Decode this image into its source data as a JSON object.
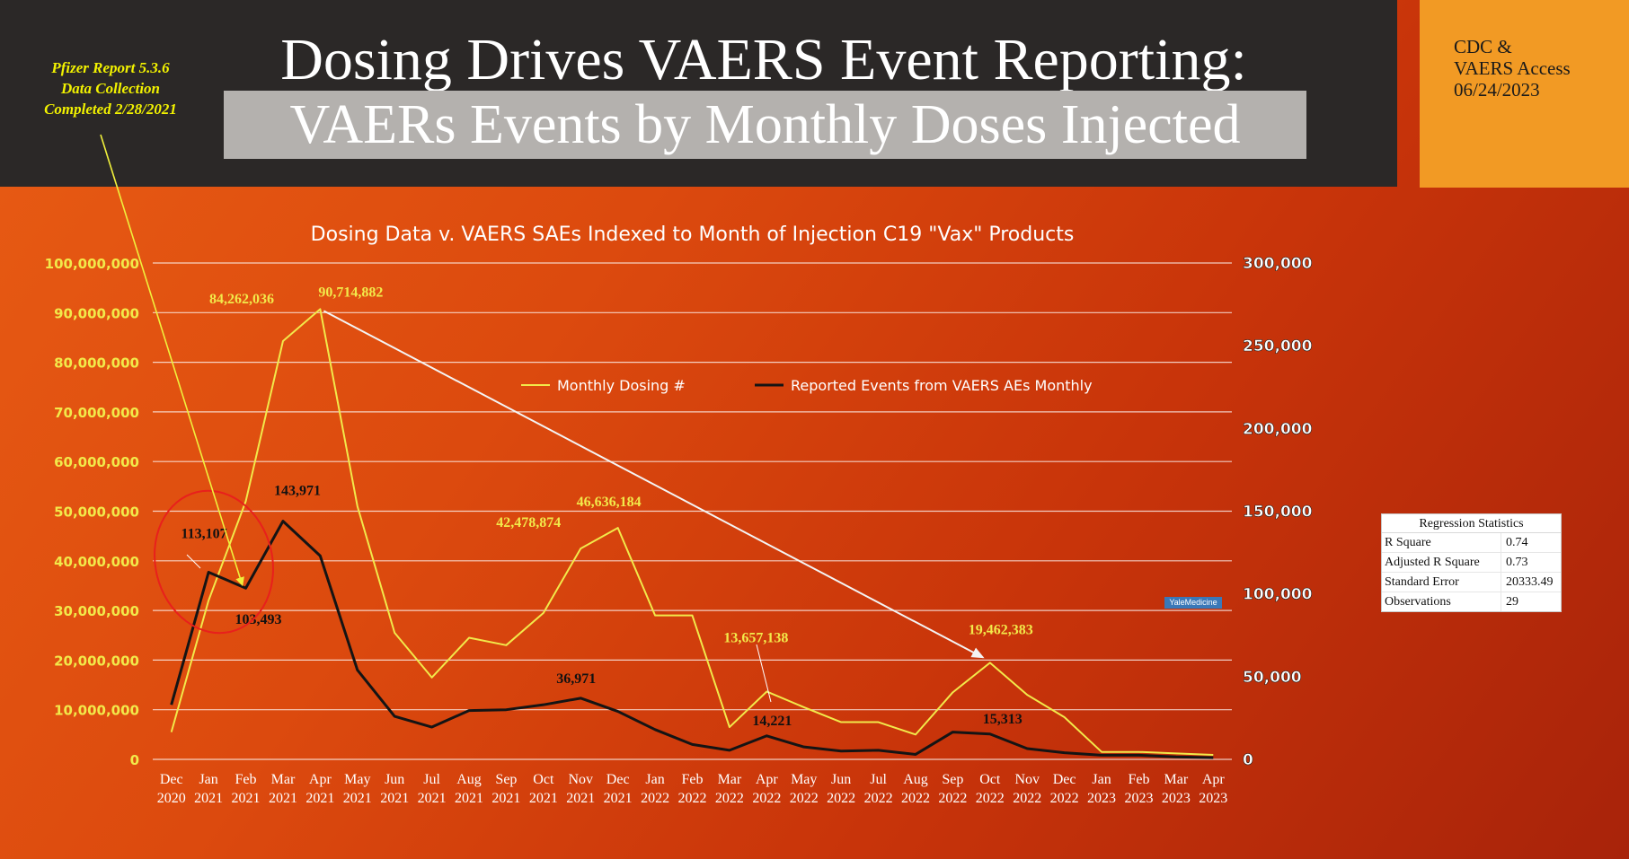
{
  "header": {
    "title": "Dosing Drives VAERS Event Reporting:",
    "subtitle": "VAERs Events by Monthly Doses Injected"
  },
  "pfizer_note": {
    "lines": [
      "Pfizer Report 5.3.6",
      "Data Collection",
      "Completed 2/28/2021"
    ]
  },
  "source_box": {
    "lines": [
      "CDC &",
      "VAERS Access",
      "06/24/2023"
    ]
  },
  "regression": {
    "title": "Regression Statistics",
    "rows": [
      {
        "label": "R Square",
        "value": "0.74"
      },
      {
        "label": "Adjusted R Square",
        "value": "0.73"
      },
      {
        "label": "Standard Error",
        "value": "20333.49"
      },
      {
        "label": "Observations",
        "value": "29"
      }
    ]
  },
  "badge": "YaleMedicine",
  "colors": {
    "dosing": "#f2e94a",
    "events": "#141414",
    "arrow_yellow": "#f0f03c",
    "arrow_white": "#f4f4f4",
    "circle": "#e8201c",
    "left_axis": "#f2e94a",
    "right_axis": "#ffffff"
  },
  "chart_data": {
    "type": "line",
    "title": "Dosing Data v. VAERS SAEs Indexed to Month of Injection C19 \"Vax\" Products",
    "categories": [
      [
        "Dec",
        "2020"
      ],
      [
        "Jan",
        "2021"
      ],
      [
        "Feb",
        "2021"
      ],
      [
        "Mar",
        "2021"
      ],
      [
        "Apr",
        "2021"
      ],
      [
        "May",
        "2021"
      ],
      [
        "Jun",
        "2021"
      ],
      [
        "Jul",
        "2021"
      ],
      [
        "Aug",
        "2021"
      ],
      [
        "Sep",
        "2021"
      ],
      [
        "Oct",
        "2021"
      ],
      [
        "Nov",
        "2021"
      ],
      [
        "Dec",
        "2021"
      ],
      [
        "Jan",
        "2022"
      ],
      [
        "Feb",
        "2022"
      ],
      [
        "Mar",
        "2022"
      ],
      [
        "Apr",
        "2022"
      ],
      [
        "May",
        "2022"
      ],
      [
        "Jun",
        "2022"
      ],
      [
        "Jul",
        "2022"
      ],
      [
        "Aug",
        "2022"
      ],
      [
        "Sep",
        "2022"
      ],
      [
        "Oct",
        "2022"
      ],
      [
        "Nov",
        "2022"
      ],
      [
        "Dec",
        "2022"
      ],
      [
        "Jan",
        "2023"
      ],
      [
        "Feb",
        "2023"
      ],
      [
        "Mar",
        "2023"
      ],
      [
        "Apr",
        "2023"
      ]
    ],
    "left_axis": {
      "range": [
        0,
        100000000
      ],
      "ticks": [
        "0",
        "10,000,000",
        "20,000,000",
        "30,000,000",
        "40,000,000",
        "50,000,000",
        "60,000,000",
        "70,000,000",
        "80,000,000",
        "90,000,000",
        "100,000,000"
      ]
    },
    "right_axis": {
      "range": [
        0,
        300000
      ],
      "ticks": [
        "0",
        "50,000",
        "100,000",
        "150,000",
        "200,000",
        "250,000",
        "300,000"
      ]
    },
    "legend_position": "top-center",
    "grid": true,
    "series": [
      {
        "name": "Monthly Dosing #",
        "axis": "left",
        "values": [
          5500000,
          32000000,
          52000000,
          84262036,
          90714882,
          51000000,
          25500000,
          16500000,
          24500000,
          23000000,
          29500000,
          42478874,
          46636184,
          29000000,
          29000000,
          6500000,
          13657138,
          10500000,
          7500000,
          7500000,
          5000000,
          13500000,
          19462383,
          13000000,
          8500000,
          1500000,
          1500000,
          1200000,
          900000
        ],
        "labels": [
          {
            "index": 3,
            "text": "84,262,036"
          },
          {
            "index": 4,
            "text": "90,714,882"
          },
          {
            "index": 11,
            "text": "42,478,874"
          },
          {
            "index": 12,
            "text": "46,636,184"
          },
          {
            "index": 16,
            "text": "13,657,138"
          },
          {
            "index": 22,
            "text": "19,462,383"
          }
        ]
      },
      {
        "name": "Reported Events from VAERS AEs Monthly",
        "axis": "right",
        "values": [
          33000,
          113107,
          103493,
          143971,
          123000,
          54000,
          26000,
          19500,
          29500,
          30000,
          33000,
          36971,
          29000,
          18000,
          9000,
          5500,
          14221,
          7500,
          5000,
          5500,
          3000,
          16500,
          15313,
          6500,
          4000,
          2500,
          2500,
          1500,
          1000
        ],
        "labels": [
          {
            "index": 1,
            "text": "113,107"
          },
          {
            "index": 2,
            "text": "103,493"
          },
          {
            "index": 3,
            "text": "143,971"
          },
          {
            "index": 11,
            "text": "36,971"
          },
          {
            "index": 16,
            "text": "14,221"
          },
          {
            "index": 22,
            "text": "15,313"
          }
        ]
      }
    ]
  }
}
